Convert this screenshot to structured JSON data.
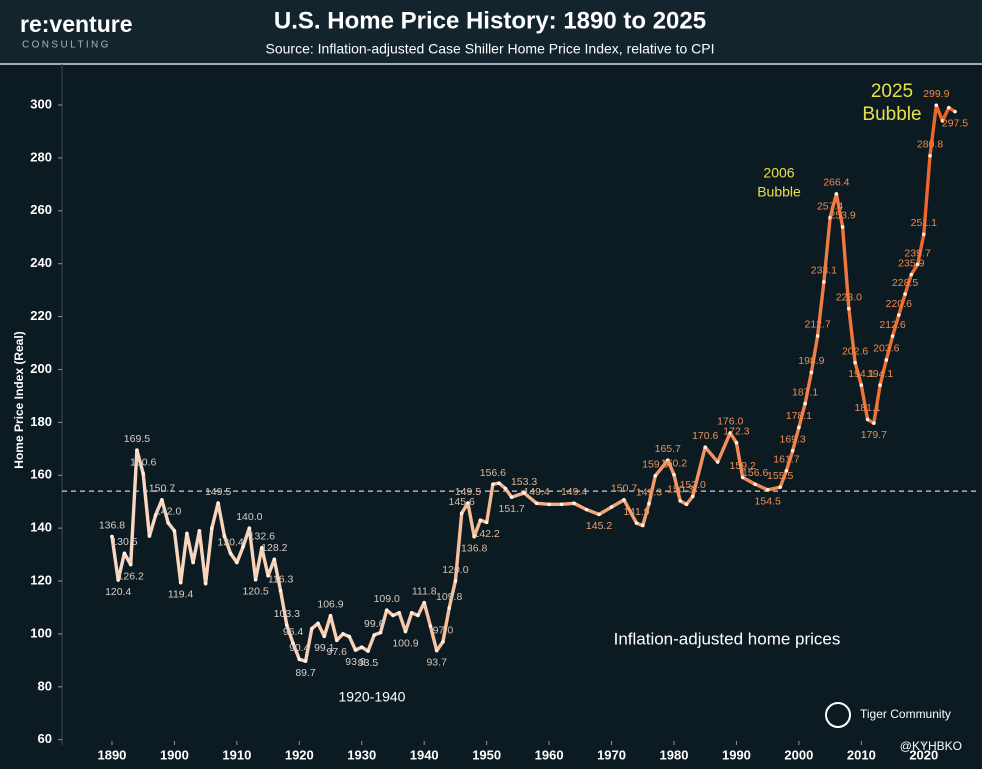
{
  "header": {
    "logo": "re:venture",
    "logo_sub": "CONSULTING"
  },
  "chart_data": {
    "type": "line",
    "title": "U.S. Home Price History: 1890 to 2025",
    "subtitle": "Source: Inflation-adjusted Case Shiller Home Price Index, relative to CPI",
    "y_label": "Home Price Index (Real)",
    "xlim": [
      1882,
      2029
    ],
    "ylim": [
      58,
      314
    ],
    "xticks": [
      1890,
      1900,
      1910,
      1920,
      1930,
      1940,
      1950,
      1960,
      1970,
      1980,
      1990,
      2000,
      2010,
      2020
    ],
    "yticks": [
      60,
      80,
      100,
      120,
      140,
      160,
      180,
      200,
      220,
      240,
      260,
      280,
      300
    ],
    "reference_line": 154,
    "line_colors": [
      "#f9dac6",
      "#f8cfb2",
      "#f39a66",
      "#ee5c1e"
    ],
    "label_colors": [
      "#d6cdc6",
      "#d6cdc6",
      "#e6925c",
      "#ef8444"
    ],
    "series": [
      {
        "name": "Inflation-adjusted home prices",
        "x": [
          1890,
          1891,
          1892,
          1893,
          1894,
          1895,
          1896,
          1897,
          1898,
          1899,
          1900,
          1901,
          1902,
          1903,
          1904,
          1905,
          1906,
          1907,
          1908,
          1909,
          1910,
          1911,
          1912,
          1913,
          1914,
          1915,
          1916,
          1917,
          1918,
          1919,
          1920,
          1921,
          1922,
          1923,
          1924,
          1925,
          1926,
          1927,
          1928,
          1929,
          1930,
          1931,
          1932,
          1933,
          1934,
          1935,
          1936,
          1937,
          1938,
          1939,
          1940,
          1941,
          1942,
          1943,
          1944,
          1945,
          1946,
          1947,
          1948,
          1949,
          1950,
          1951,
          1952,
          1953,
          1954,
          1956,
          1958,
          1960,
          1962,
          1964,
          1966,
          1968,
          1970,
          1972,
          1974,
          1975,
          1976,
          1977,
          1979,
          1980,
          1981,
          1982,
          1983,
          1985,
          1987,
          1989,
          1990,
          1991,
          1993,
          1995,
          1997,
          1998,
          1999,
          2000,
          2001,
          2002,
          2003,
          2004,
          2005,
          2006,
          2007,
          2008,
          2009,
          2010,
          2011,
          2012,
          2013,
          2014,
          2015,
          2016,
          2017,
          2018,
          2019,
          2020,
          2021,
          2022,
          2023,
          2024,
          2025
        ],
        "values": [
          136.8,
          120.4,
          130.5,
          126.2,
          169.5,
          160.6,
          137,
          145,
          150.7,
          142.0,
          139,
          119.4,
          138,
          127,
          139,
          119,
          140,
          149.5,
          137,
          130.4,
          127,
          133,
          140.0,
          120.5,
          132.6,
          122,
          128.2,
          116.3,
          103.3,
          96.4,
          90.4,
          89.7,
          102,
          104,
          99.1,
          106.9,
          97.6,
          100,
          99,
          93.9,
          95,
          93.5,
          99.6,
          100.5,
          109.0,
          107,
          108,
          100.9,
          108,
          107,
          111.8,
          103,
          93.7,
          97.0,
          109.8,
          120.0,
          145.6,
          149.5,
          136.8,
          143,
          142.2,
          156.6,
          157,
          155,
          151.7,
          153.3,
          149.4,
          149,
          149,
          149.4,
          147,
          145.2,
          148,
          150.7,
          141.9,
          141,
          149.3,
          159.8,
          165.7,
          160.2,
          150.3,
          149,
          152.0,
          170.6,
          165,
          176.0,
          172.3,
          159.2,
          156.6,
          154.5,
          155.5,
          161.7,
          169.3,
          178.1,
          187.1,
          198.9,
          212.7,
          233.1,
          257.4,
          266.4,
          253.9,
          223.0,
          202.6,
          194.1,
          181.1,
          179.7,
          194.1,
          203.6,
          212.6,
          220.6,
          228.5,
          235.9,
          239.7,
          251.1,
          280.8,
          299.9,
          294,
          299,
          297.5
        ],
        "value_labels": [
          "136.8",
          "120.4",
          "130.5",
          "126.2",
          "169.5",
          "160.6",
          null,
          null,
          "150.7",
          "142.0",
          null,
          "119.4",
          null,
          null,
          null,
          null,
          null,
          "149.5",
          null,
          "130.4",
          null,
          null,
          "140.0",
          "120.5",
          "132.6",
          null,
          "128.2",
          "116.3",
          "103.3",
          "96.4",
          "90.4",
          "89.7",
          null,
          null,
          "99.1",
          "106.9",
          "97.6",
          null,
          null,
          "93.9",
          null,
          "93.5",
          "99.6",
          null,
          "109.0",
          null,
          null,
          "100.9",
          null,
          null,
          "111.8",
          null,
          "93.7",
          "97.0",
          "109.8",
          "120.0",
          "145.6",
          "149.5",
          "136.8",
          null,
          "142.2",
          "156.6",
          null,
          null,
          "151.7",
          "153.3",
          "149.4",
          null,
          null,
          "149.4",
          null,
          "145.2",
          null,
          "150.7",
          "141.9",
          null,
          "149.3",
          "159.8",
          "165.7",
          "160.2",
          "150.3",
          null,
          "152.0",
          "170.6",
          null,
          "176.0",
          "172.3",
          "159.2",
          "156.6",
          "154.5",
          "155.5",
          "161.7",
          "169.3",
          "178.1",
          "187.1",
          "198.9",
          "212.7",
          "233.1",
          "257.4",
          "266.4",
          "253.9",
          "223.0",
          "202.6",
          "194.1",
          "181.1",
          "179.7",
          "194.1",
          "203.6",
          "212.6",
          "220.6",
          "228.5",
          "235.9",
          "239.7",
          "251.1",
          "280.8",
          "299.9",
          null,
          null,
          "297.5"
        ]
      }
    ],
    "annotations": {
      "bubble_2006": [
        "2006",
        "Bubble"
      ],
      "bubble_2025": [
        "2025",
        "Bubble"
      ],
      "era": "1920-1940",
      "series_note": "Inflation-adjusted home prices"
    }
  },
  "watermark": {
    "brand": "Tiger Community",
    "handle": "@KYHBKO"
  }
}
